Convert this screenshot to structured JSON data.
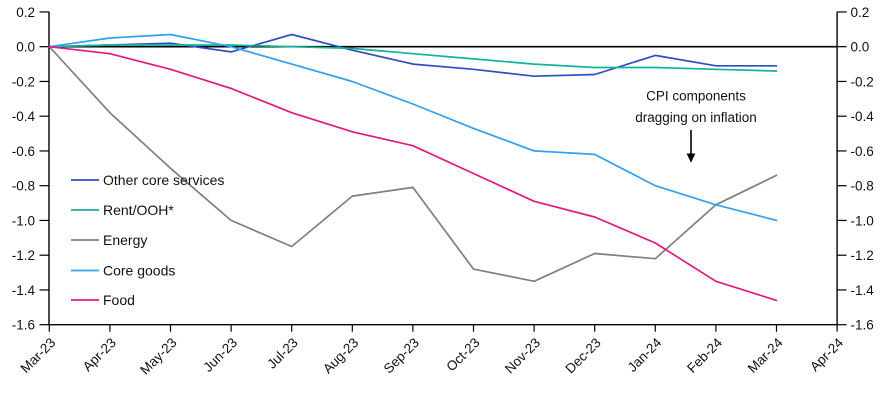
{
  "chart_data": {
    "type": "line",
    "title": "",
    "xlabel": "",
    "ylabel": "",
    "ylim": [
      -1.6,
      0.2
    ],
    "grid": false,
    "legend_position": "middle-left",
    "axis_color": "#000000",
    "background_color": "#ffffff",
    "y_tick_labels": [
      "0.2",
      "0.0",
      "-0.2",
      "-0.4",
      "-0.6",
      "-0.8",
      "-1.0",
      "-1.2",
      "-1.4",
      "-1.6"
    ],
    "x_tick_labels": [
      "Mar-23",
      "Apr-23",
      "May-23",
      "Jun-23",
      "Jul-23",
      "Aug-23",
      "Sep-23",
      "Oct-23",
      "Nov-23",
      "Dec-23",
      "Jan-24",
      "Feb-24",
      "Mar-24",
      "Apr-24"
    ],
    "categories": [
      "Mar-23",
      "Apr-23",
      "May-23",
      "Jun-23",
      "Jul-23",
      "Aug-23",
      "Sep-23",
      "Oct-23",
      "Nov-23",
      "Dec-23",
      "Jan-24",
      "Feb-24",
      "Mar-24"
    ],
    "series": [
      {
        "name": "Other core services",
        "color": "#2f4ec4",
        "values": [
          0.0,
          0.01,
          0.02,
          -0.03,
          0.07,
          -0.02,
          -0.1,
          -0.13,
          -0.17,
          -0.16,
          -0.05,
          -0.11,
          -0.11
        ]
      },
      {
        "name": "Rent/OOH*",
        "color": "#14b29c",
        "values": [
          0.0,
          0.01,
          0.01,
          0.01,
          0.0,
          -0.01,
          -0.04,
          -0.07,
          -0.1,
          -0.12,
          -0.12,
          -0.13,
          -0.14
        ]
      },
      {
        "name": "Energy",
        "color": "#7f7f7f",
        "values": [
          0.0,
          -0.38,
          -0.7,
          -1.0,
          -1.15,
          -0.86,
          -0.81,
          -1.28,
          -1.35,
          -1.19,
          -1.22,
          -0.91,
          -0.74
        ]
      },
      {
        "name": "Core goods",
        "color": "#31a0f2",
        "values": [
          0.0,
          0.05,
          0.07,
          0.0,
          -0.1,
          -0.2,
          -0.33,
          -0.47,
          -0.6,
          -0.62,
          -0.8,
          -0.91,
          -1.0
        ]
      },
      {
        "name": "Food",
        "color": "#e2197f",
        "values": [
          0.0,
          -0.04,
          -0.13,
          -0.24,
          -0.38,
          -0.49,
          -0.57,
          -0.73,
          -0.89,
          -0.98,
          -1.13,
          -1.35,
          -1.46
        ]
      }
    ],
    "annotation": {
      "line1": "CPI components",
      "line2": "dragging on inflation",
      "arrow_icon": "down-arrow"
    }
  }
}
